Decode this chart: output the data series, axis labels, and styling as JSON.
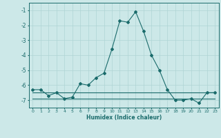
{
  "x": [
    0,
    1,
    2,
    3,
    4,
    5,
    6,
    7,
    8,
    9,
    10,
    11,
    12,
    13,
    14,
    15,
    16,
    17,
    18,
    19,
    20,
    21,
    22,
    23
  ],
  "y_main": [
    -6.3,
    -6.3,
    -6.7,
    -6.5,
    -6.9,
    -6.8,
    -5.9,
    -6.0,
    -5.5,
    -5.2,
    -3.6,
    -1.7,
    -1.8,
    -1.1,
    -2.4,
    -4.0,
    -5.0,
    -6.3,
    -7.0,
    -7.0,
    -6.9,
    -7.2,
    -6.5,
    -6.5
  ],
  "y_flat1": [
    -6.5,
    -6.5,
    -6.5,
    -6.5,
    -6.5,
    -6.5,
    -6.5,
    -6.5,
    -6.5,
    -6.5,
    -6.5,
    -6.5,
    -6.5,
    -6.5,
    -6.5,
    -6.5,
    -6.5,
    -6.5,
    -6.5,
    -6.5,
    -6.5,
    -6.5,
    -6.5,
    -6.5
  ],
  "y_flat2": [
    -6.9,
    -6.9,
    -6.9,
    -6.9,
    -6.9,
    -6.9,
    -6.9,
    -6.9,
    -6.9,
    -6.9,
    -6.9,
    -6.9,
    -6.9,
    -6.9,
    -6.9,
    -6.9,
    -6.9,
    -6.9,
    -6.9,
    -6.9,
    -6.9,
    -6.9,
    -6.9,
    -6.9
  ],
  "line_color": "#1a6b6b",
  "bg_color": "#cce8e8",
  "grid_color": "#afd4d4",
  "xlabel": "Humidex (Indice chaleur)",
  "ylim": [
    -7.5,
    -0.5
  ],
  "xlim": [
    -0.5,
    23.5
  ],
  "yticks": [
    -7,
    -6,
    -5,
    -4,
    -3,
    -2,
    -1
  ],
  "xticks": [
    0,
    1,
    2,
    3,
    4,
    5,
    6,
    7,
    8,
    9,
    10,
    11,
    12,
    13,
    14,
    15,
    16,
    17,
    18,
    19,
    20,
    21,
    22,
    23
  ],
  "xtick_fontsize": 4.5,
  "ytick_fontsize": 5.5,
  "xlabel_fontsize": 5.5,
  "marker_size": 2.0,
  "line_width": 0.8
}
